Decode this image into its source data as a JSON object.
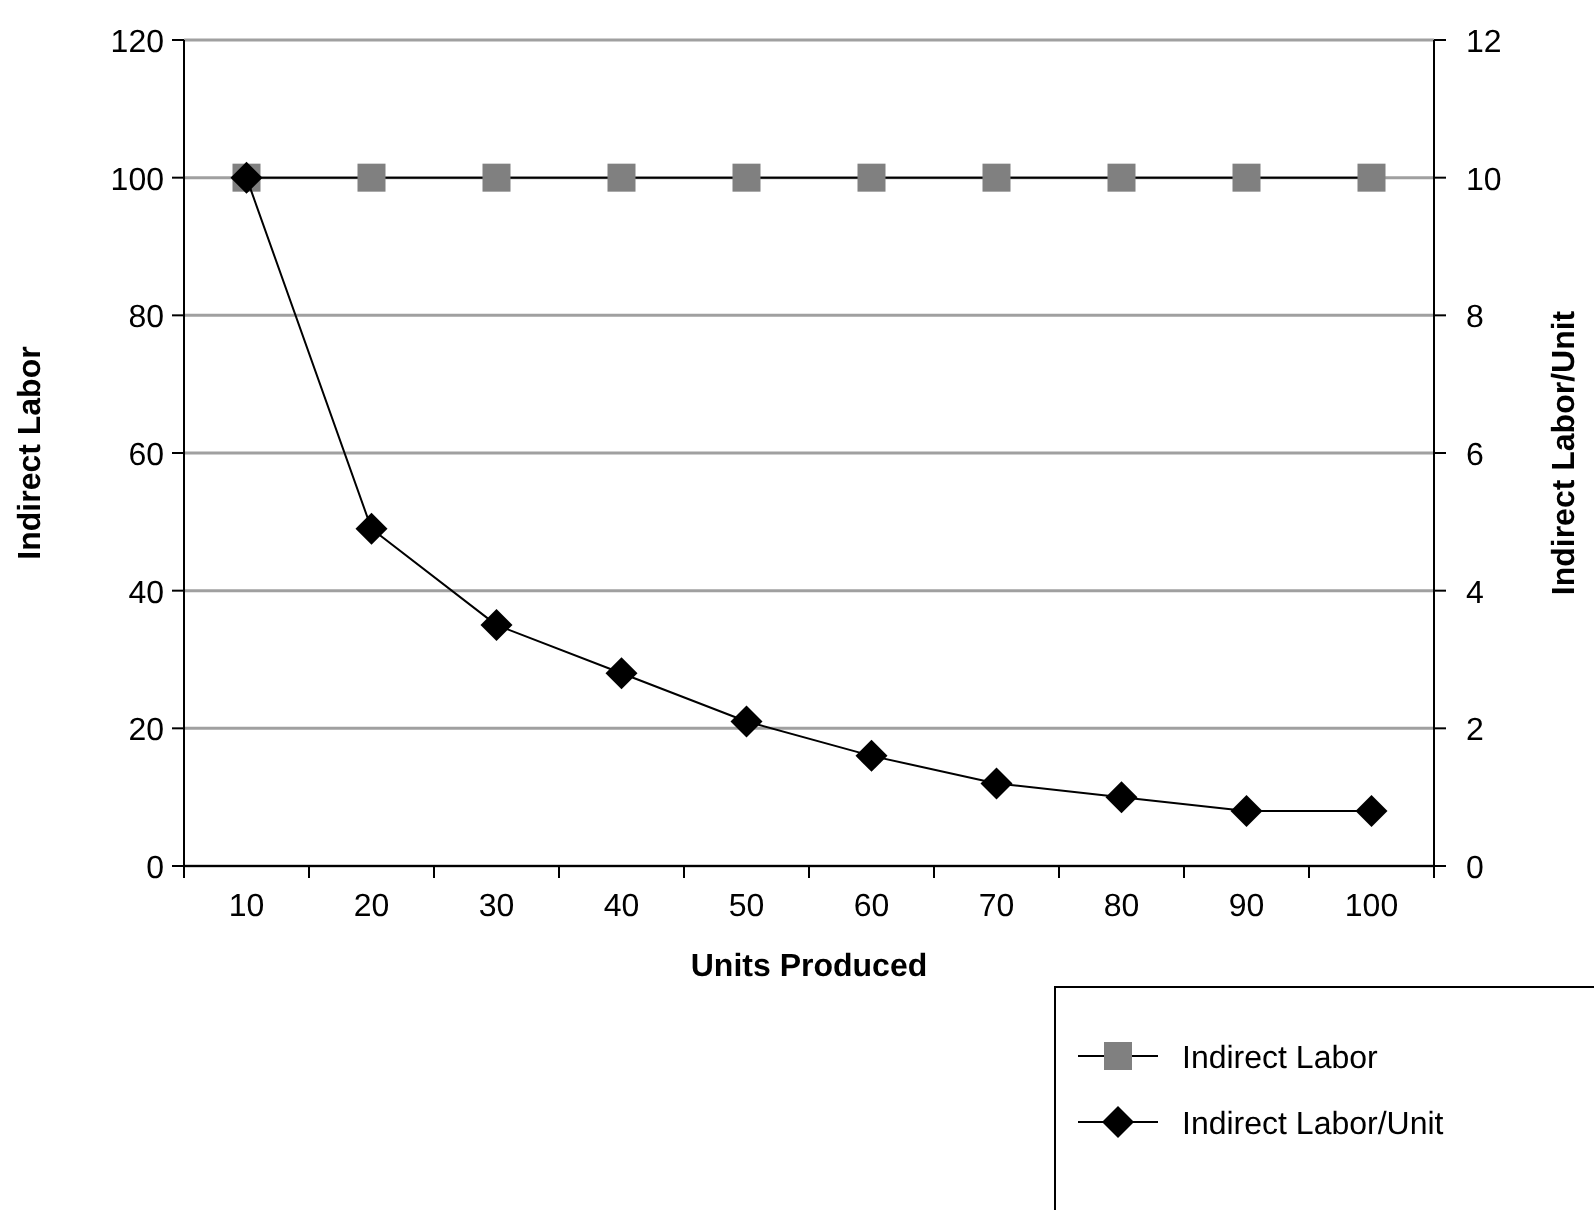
{
  "chart_data": {
    "type": "line",
    "xlabel": "Units Produced",
    "ylabel": "Indirect Labor",
    "y2label": "Indirect Labor/Unit",
    "categories": [
      "10",
      "20",
      "30",
      "40",
      "50",
      "60",
      "70",
      "80",
      "90",
      "100"
    ],
    "series": [
      {
        "name": "Indirect Labor",
        "color": "#808080",
        "marker": "square",
        "values": [
          100,
          100,
          100,
          100,
          100,
          100,
          100,
          100,
          100,
          100
        ]
      },
      {
        "name": "Indirect Labor/Unit",
        "color": "#000000",
        "marker": "diamond",
        "axis": "y2",
        "values": [
          10,
          4.9,
          3.5,
          2.8,
          2.1,
          1.6,
          1.2,
          1.0,
          0.8,
          0.8
        ]
      }
    ],
    "ylim": [
      0,
      120
    ],
    "yticks": [
      0,
      20,
      40,
      60,
      80,
      100,
      120
    ],
    "y2lim": [
      0,
      12
    ],
    "y2ticks": [
      0,
      2,
      4,
      6,
      8,
      10,
      12
    ],
    "grid": "y",
    "legend": "bottom right"
  }
}
